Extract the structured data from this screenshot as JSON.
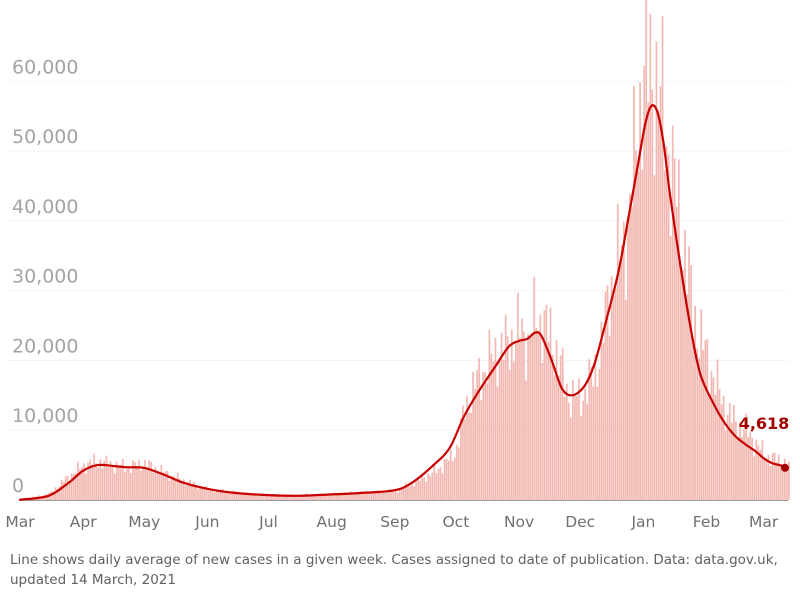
{
  "chart_data": {
    "type": "bar",
    "title": "",
    "xlabel": "",
    "ylabel": "",
    "ylim": [
      0,
      68500
    ],
    "yticks": [
      "0",
      "10,000",
      "20,000",
      "30,000",
      "40,000",
      "50,000",
      "60,000"
    ],
    "ytick_values": [
      0,
      10000,
      20000,
      30000,
      40000,
      50000,
      60000
    ],
    "xticks": [
      "Mar",
      "Apr",
      "May",
      "Jun",
      "Jul",
      "Aug",
      "Sep",
      "Oct",
      "Nov",
      "Dec",
      "Jan",
      "Feb",
      "Mar"
    ],
    "xtick_dates": [
      "2020-03-01",
      "2020-04-01",
      "2020-05-01",
      "2020-06-01",
      "2020-07-01",
      "2020-08-01",
      "2020-09-01",
      "2020-10-01",
      "2020-11-01",
      "2020-12-01",
      "2021-01-01",
      "2021-02-01",
      "2021-03-01"
    ],
    "grid": true,
    "series": [
      {
        "type": "bar",
        "color": "#f2b8b1",
        "x": [
          "2020-03-01",
          "2020-03-15",
          "2020-03-25",
          "2020-04-01",
          "2020-04-08",
          "2020-04-15",
          "2020-04-22",
          "2020-05-01",
          "2020-05-10",
          "2020-05-20",
          "2020-06-01",
          "2020-06-15",
          "2020-07-01",
          "2020-07-15",
          "2020-08-01",
          "2020-08-15",
          "2020-09-01",
          "2020-09-10",
          "2020-09-20",
          "2020-09-28",
          "2020-10-01",
          "2020-10-05",
          "2020-10-10",
          "2020-10-15",
          "2020-10-20",
          "2020-10-25",
          "2020-11-01",
          "2020-11-05",
          "2020-11-09",
          "2020-11-13",
          "2020-11-17",
          "2020-11-21",
          "2020-11-25",
          "2020-11-29",
          "2020-12-03",
          "2020-12-07",
          "2020-12-11",
          "2020-12-15",
          "2020-12-20",
          "2020-12-25",
          "2020-12-29",
          "2021-01-01",
          "2021-01-04",
          "2021-01-07",
          "2021-01-10",
          "2021-01-13",
          "2021-01-16",
          "2021-01-20",
          "2021-01-25",
          "2021-01-30",
          "2021-02-05",
          "2021-02-10",
          "2021-02-15",
          "2021-02-20",
          "2021-02-25",
          "2021-03-01",
          "2021-03-05",
          "2021-03-10",
          "2021-03-13"
        ],
        "values": [
          30,
          900,
          3500,
          5000,
          5600,
          5000,
          4700,
          5200,
          4000,
          2800,
          1500,
          1100,
          600,
          700,
          850,
          1100,
          1300,
          2500,
          4000,
          6000,
          7500,
          13000,
          16500,
          19000,
          21000,
          22000,
          24500,
          22500,
          26500,
          25000,
          23000,
          19000,
          15000,
          14500,
          15500,
          18000,
          22000,
          30000,
          35000,
          41000,
          55000,
          60000,
          62000,
          60000,
          56000,
          50000,
          45000,
          38000,
          27000,
          22000,
          17000,
          13000,
          11000,
          10000,
          8000,
          6500,
          6000,
          5500,
          5000
        ]
      },
      {
        "type": "line",
        "color": "#c70000",
        "x": [
          "2020-03-01",
          "2020-03-15",
          "2020-03-25",
          "2020-04-01",
          "2020-04-08",
          "2020-04-15",
          "2020-04-22",
          "2020-05-01",
          "2020-05-10",
          "2020-05-20",
          "2020-06-01",
          "2020-06-15",
          "2020-07-01",
          "2020-07-15",
          "2020-08-01",
          "2020-08-15",
          "2020-09-01",
          "2020-09-10",
          "2020-09-20",
          "2020-09-28",
          "2020-10-05",
          "2020-10-12",
          "2020-10-20",
          "2020-10-27",
          "2020-11-01",
          "2020-11-05",
          "2020-11-09",
          "2020-11-12",
          "2020-11-17",
          "2020-11-22",
          "2020-11-27",
          "2020-12-03",
          "2020-12-08",
          "2020-12-14",
          "2020-12-20",
          "2020-12-25",
          "2020-12-29",
          "2021-01-02",
          "2021-01-05",
          "2021-01-08",
          "2021-01-11",
          "2021-01-14",
          "2021-01-19",
          "2021-01-24",
          "2021-01-29",
          "2021-02-05",
          "2021-02-10",
          "2021-02-15",
          "2021-02-20",
          "2021-02-25",
          "2021-03-01",
          "2021-03-05",
          "2021-03-10",
          "2021-03-12"
        ],
        "values": [
          50,
          600,
          2500,
          4200,
          5000,
          4900,
          4700,
          4600,
          3700,
          2500,
          1600,
          1000,
          700,
          600,
          800,
          1000,
          1400,
          2600,
          5000,
          7500,
          12000,
          15500,
          19000,
          22000,
          22800,
          23100,
          24000,
          23500,
          20000,
          16000,
          15000,
          16300,
          19500,
          26000,
          33000,
          41000,
          47500,
          54000,
          56500,
          55500,
          51000,
          44000,
          34000,
          25000,
          18000,
          13500,
          11000,
          9200,
          8000,
          7000,
          6000,
          5300,
          4900,
          4618
        ]
      }
    ],
    "annotations": [
      {
        "label": "4,618",
        "x": "2021-03-12",
        "y": 4618,
        "color": "#a30000"
      }
    ],
    "footnote_line1": "Line shows daily average of new cases in a given week. Cases assigned to date of publication. Data: data.gov.uk,",
    "footnote_line2": "updated 14 March, 2021"
  }
}
